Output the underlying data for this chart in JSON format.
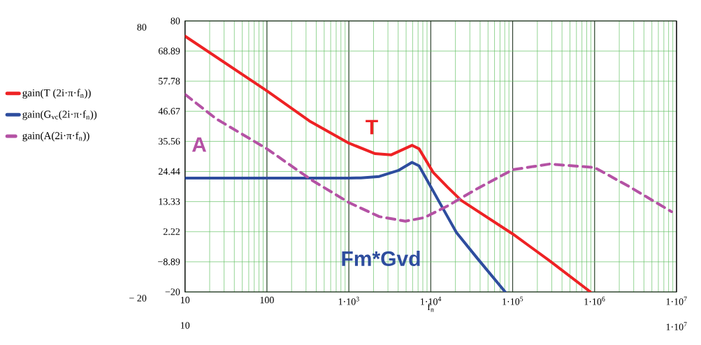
{
  "chart_data": {
    "type": "line",
    "xlabel": "f$_{n}$",
    "log": "x",
    "grid": true,
    "legend": "left",
    "line_style": "solid",
    "marker": "none",
    "xlim": [
      10,
      10000000
    ],
    "ylim": [
      -20,
      80
    ],
    "xticks": [
      10,
      100,
      {
        "value": 1000,
        "label": "1·10$^{3}$"
      },
      {
        "value": 10000,
        "label": "1·10$^{4}$"
      },
      {
        "value": 100000,
        "label": "1·10$^{5}$"
      },
      {
        "value": 1000000,
        "label": "1·10$^{6}$"
      },
      {
        "value": 10000000,
        "label": "1·10$^{7}$"
      }
    ],
    "yticks": [
      {
        "value": -20,
        "label": "−20"
      },
      {
        "value": -8.89,
        "label": "−8.89"
      },
      2.22,
      13.33,
      24.44,
      35.56,
      46.67,
      57.78,
      68.89,
      80
    ],
    "series": [
      {
        "name": "gain(T (2i·π·f$_{n}$))",
        "color": "#ee2224",
        "x": [
          10,
          100,
          330,
          1000,
          2100,
          3300,
          5900,
          7200,
          10700,
          16000,
          23500,
          100000,
          282000,
          890000
        ],
        "values": [
          74.4,
          54.2,
          43.1,
          34.9,
          31.0,
          30.6,
          34.1,
          32.8,
          24.1,
          18.7,
          13.8,
          1.4,
          -8.5,
          -20
        ]
      },
      {
        "name": "gain(G$_{vc}$(2i·π·f$_{n}$))",
        "color": "#2e4d9e",
        "x": [
          10,
          1000,
          1400,
          2350,
          4000,
          5900,
          7200,
          16000,
          20600,
          37000,
          81000
        ],
        "values": [
          22.0,
          22.0,
          22.1,
          22.6,
          24.8,
          27.8,
          26.5,
          7.8,
          1.9,
          -7.6,
          -20
        ]
      },
      {
        "name": "gain(A(2i·π·f$_{n}$))",
        "color": "#b452a4",
        "line_style": "dashed",
        "x": [
          10,
          24,
          100,
          355,
          1000,
          2350,
          4900,
          8300,
          16000,
          35000,
          100000,
          282000,
          1000000,
          2600000,
          8700000
        ],
        "values": [
          52.9,
          43.9,
          32.8,
          21.2,
          13.0,
          7.8,
          6.1,
          7.4,
          11.7,
          17.7,
          25.1,
          27.2,
          25.9,
          19.0,
          9.6
        ]
      }
    ],
    "y2lim": [
      -20,
      80
    ],
    "y2ticks": [
      {
        "value": -20,
        "label": "− 20"
      },
      80
    ],
    "annotations": [
      "10",
      "1·10$^{7}$",
      "T",
      "Fm*Gvd",
      "A"
    ]
  }
}
